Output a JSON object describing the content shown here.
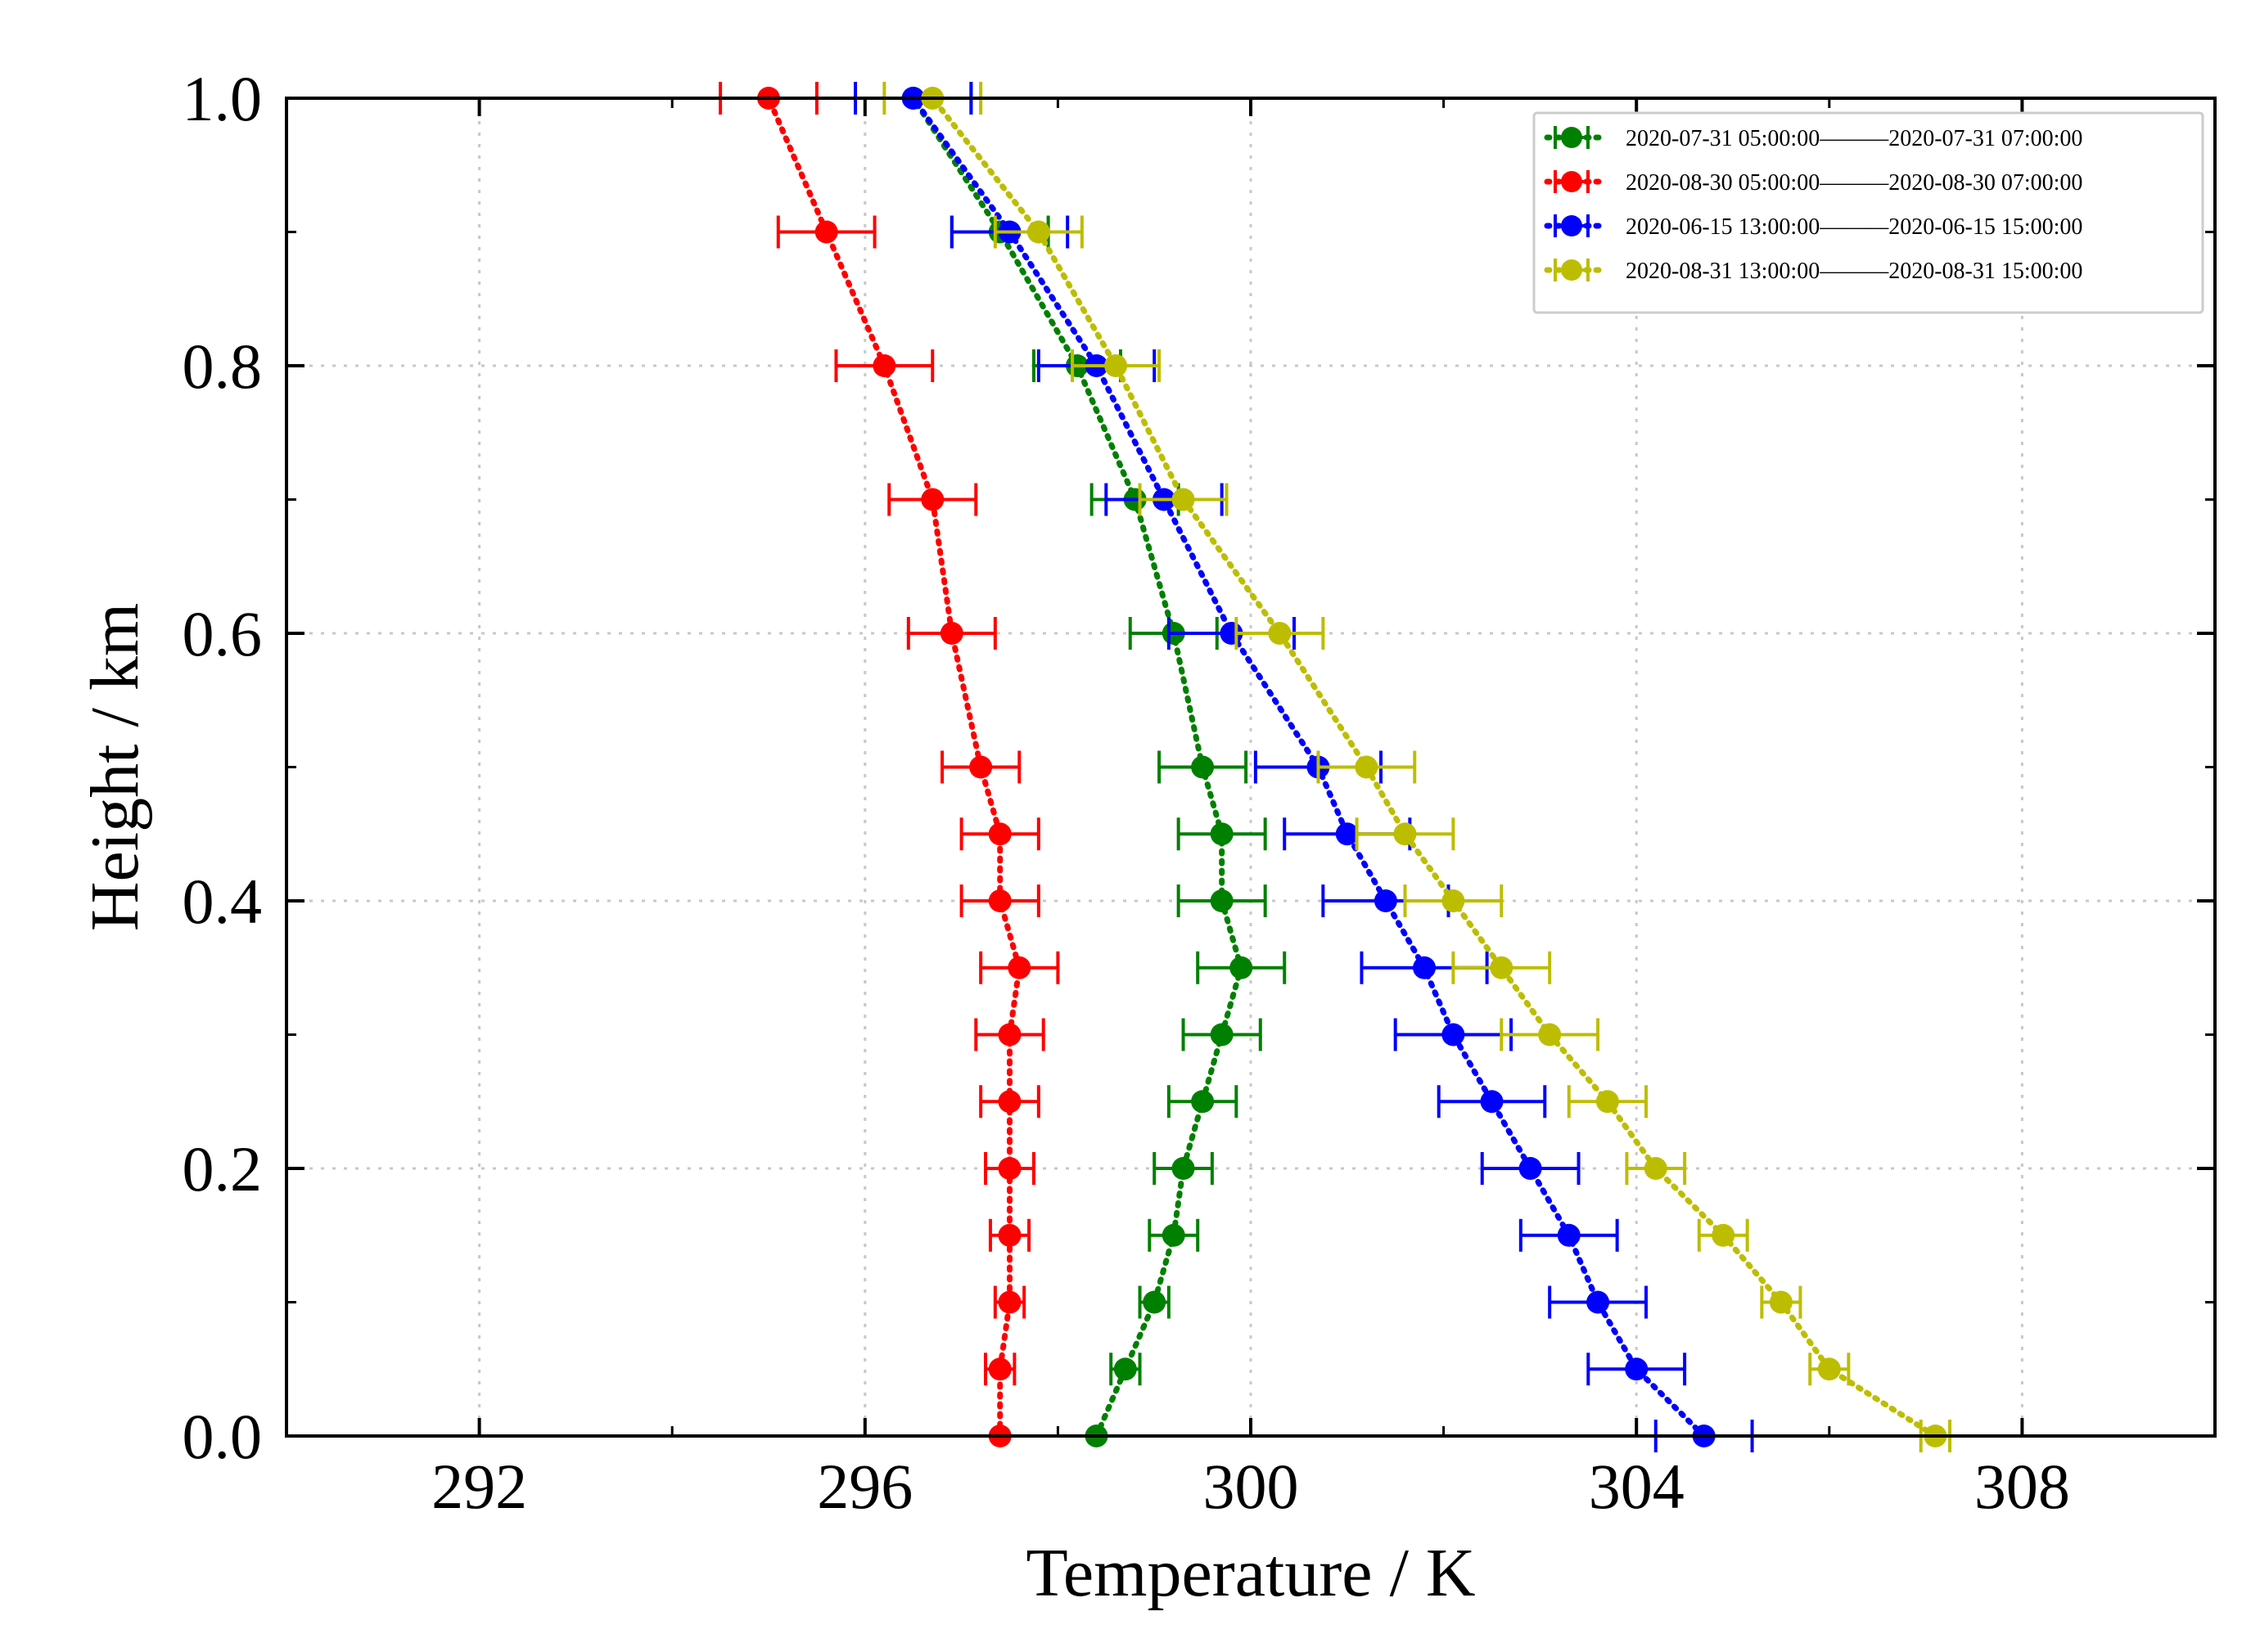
{
  "chart_data": {
    "type": "scatter",
    "title": "",
    "xlabel": "Temperature / K",
    "ylabel": "Height / km",
    "xlim": [
      290,
      310
    ],
    "ylim": [
      0,
      1.0
    ],
    "xticks": [
      292,
      296,
      300,
      304,
      308
    ],
    "xtick_labels": [
      "292",
      "296",
      "300",
      "304",
      "308"
    ],
    "yticks": [
      0.0,
      0.2,
      0.4,
      0.6,
      0.8,
      1.0
    ],
    "ytick_labels": [
      "0.0",
      "0.2",
      "0.4",
      "0.6",
      "0.8",
      "1.0"
    ],
    "grid": true,
    "legend_position": "top-right",
    "heights": [
      0.0,
      0.05,
      0.1,
      0.15,
      0.2,
      0.25,
      0.3,
      0.35,
      0.4,
      0.45,
      0.5,
      0.6,
      0.7,
      0.8,
      0.9,
      1.0
    ],
    "series": [
      {
        "name": "2020-07-31 05:00:00———2020-07-31 07:00:00",
        "color": "#008000",
        "values": [
          298.4,
          298.7,
          299.0,
          299.2,
          299.3,
          299.5,
          299.7,
          299.9,
          299.7,
          299.7,
          299.5,
          299.2,
          298.8,
          298.2,
          297.4,
          296.5
        ],
        "errors": [
          0.0,
          0.15,
          0.15,
          0.25,
          0.3,
          0.35,
          0.4,
          0.45,
          0.45,
          0.45,
          0.45,
          0.45,
          0.45,
          0.45,
          0.5,
          0.6
        ]
      },
      {
        "name": "2020-08-30 05:00:00———2020-08-30 07:00:00",
        "color": "#ff0000",
        "values": [
          297.4,
          297.4,
          297.5,
          297.5,
          297.5,
          297.5,
          297.5,
          297.6,
          297.4,
          297.4,
          297.2,
          296.9,
          296.7,
          296.2,
          295.6,
          295.0
        ],
        "errors": [
          0.0,
          0.15,
          0.15,
          0.2,
          0.25,
          0.3,
          0.35,
          0.4,
          0.4,
          0.4,
          0.4,
          0.45,
          0.45,
          0.5,
          0.5,
          0.5
        ]
      },
      {
        "name": "2020-06-15 13:00:00———2020-06-15 15:00:00",
        "color": "#0000ff",
        "values": [
          304.7,
          304.0,
          303.6,
          303.3,
          302.9,
          302.5,
          302.1,
          301.8,
          301.4,
          301.0,
          300.7,
          299.8,
          299.1,
          298.4,
          297.5,
          296.5
        ],
        "errors": [
          0.5,
          0.5,
          0.5,
          0.5,
          0.5,
          0.55,
          0.6,
          0.65,
          0.65,
          0.65,
          0.65,
          0.65,
          0.6,
          0.6,
          0.6,
          0.6
        ]
      },
      {
        "name": "2020-08-31 13:00:00———2020-08-31 15:00:00",
        "color": "#bdbd00",
        "values": [
          307.1,
          306.0,
          305.5,
          304.9,
          304.2,
          303.7,
          303.1,
          302.6,
          302.1,
          301.6,
          301.2,
          300.3,
          299.3,
          298.6,
          297.8,
          296.7
        ],
        "errors": [
          0.15,
          0.2,
          0.2,
          0.25,
          0.3,
          0.4,
          0.5,
          0.5,
          0.5,
          0.5,
          0.5,
          0.45,
          0.45,
          0.45,
          0.45,
          0.5
        ]
      }
    ]
  }
}
